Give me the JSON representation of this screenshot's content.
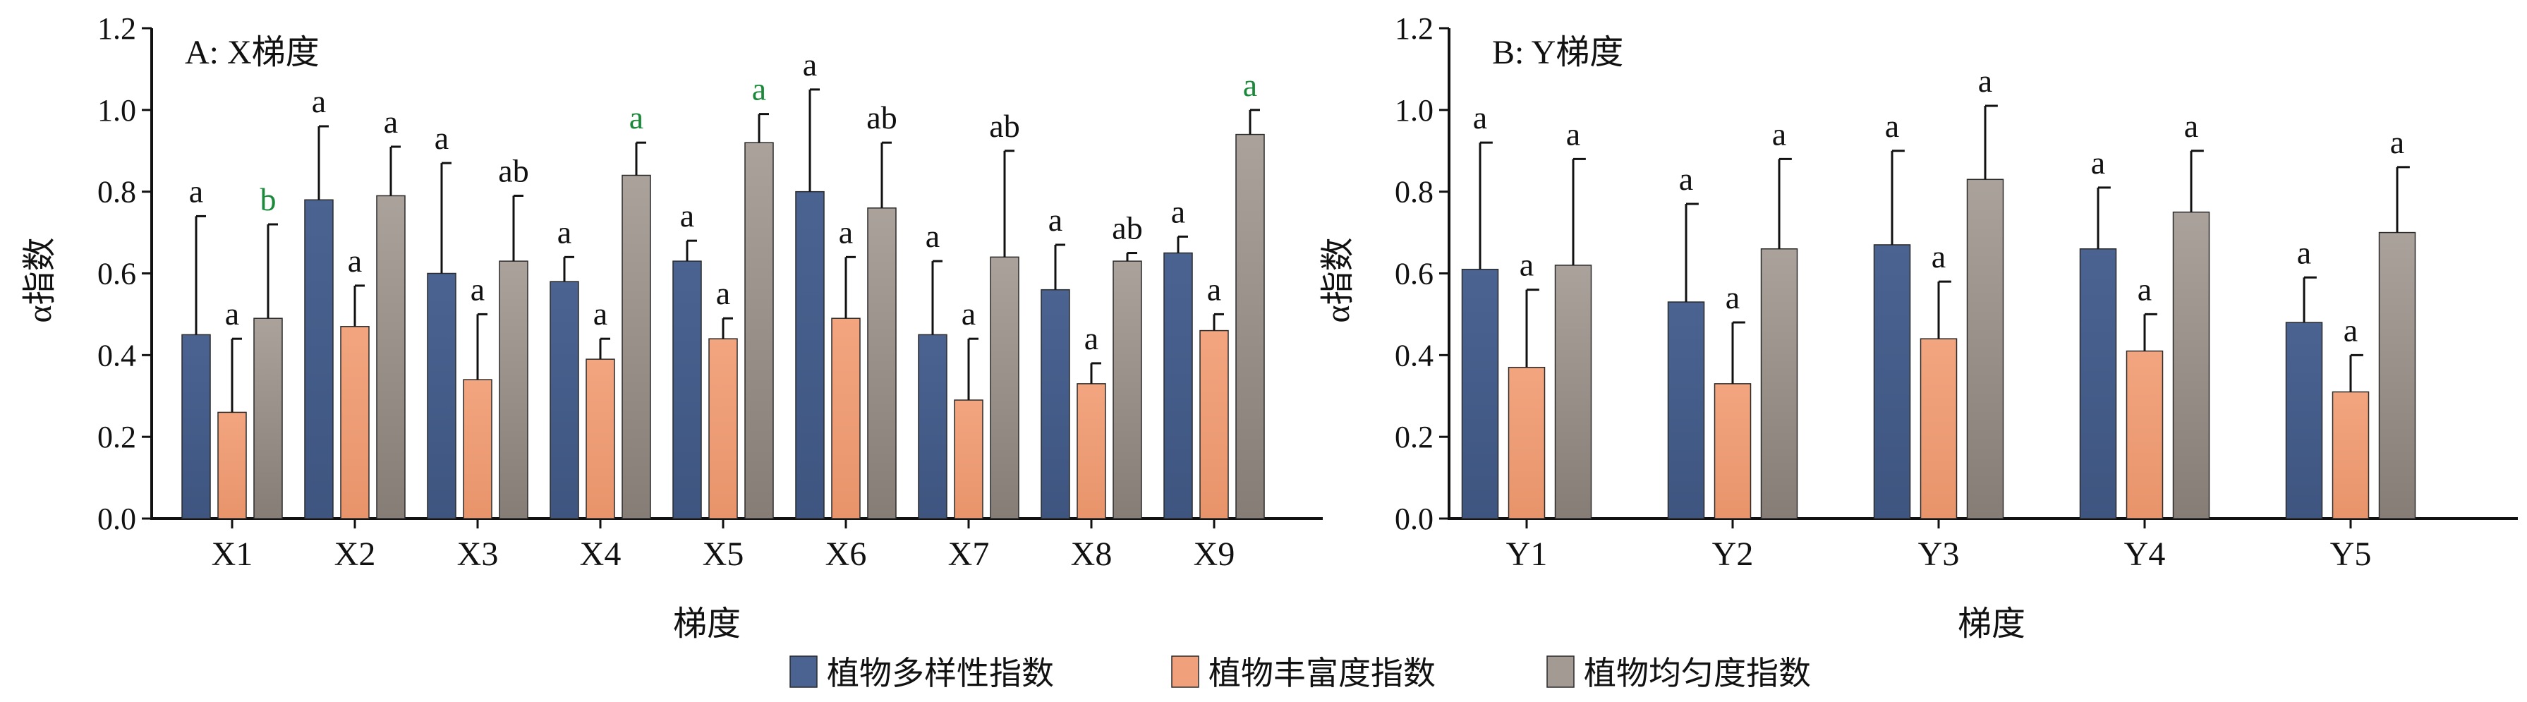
{
  "chart_data": [
    {
      "type": "bar",
      "title": "A: X梯度",
      "xlabel": "梯度",
      "ylabel": "α指数",
      "ylim": [
        0,
        1.2
      ],
      "yticks": [
        "0.0",
        "0.2",
        "0.4",
        "0.6",
        "0.8",
        "1.0",
        "1.2"
      ],
      "categories": [
        "X1",
        "X2",
        "X3",
        "X4",
        "X5",
        "X6",
        "X7",
        "X8",
        "X9"
      ],
      "series": [
        {
          "name": "植物多样性指数",
          "values": [
            0.45,
            0.78,
            0.6,
            0.58,
            0.63,
            0.8,
            0.45,
            0.56,
            0.65
          ],
          "errors": [
            0.29,
            0.18,
            0.27,
            0.06,
            0.05,
            0.25,
            0.18,
            0.11,
            0.04
          ],
          "letters": [
            "a",
            "a",
            "a",
            "a",
            "a",
            "a",
            "a",
            "a",
            "a"
          ]
        },
        {
          "name": "植物丰富度指数",
          "values": [
            0.26,
            0.47,
            0.34,
            0.39,
            0.44,
            0.49,
            0.29,
            0.33,
            0.46
          ],
          "errors": [
            0.18,
            0.1,
            0.16,
            0.05,
            0.05,
            0.15,
            0.15,
            0.05,
            0.04
          ],
          "letters": [
            "a",
            "a",
            "a",
            "a",
            "a",
            "a",
            "a",
            "a",
            "a"
          ]
        },
        {
          "name": "植物均匀度指数",
          "values": [
            0.49,
            0.79,
            0.63,
            0.84,
            0.92,
            0.76,
            0.64,
            0.63,
            0.94
          ],
          "errors": [
            0.23,
            0.12,
            0.16,
            0.08,
            0.07,
            0.16,
            0.26,
            0.02,
            0.06
          ],
          "letters": [
            "b",
            "a",
            "ab",
            "a",
            "a",
            "ab",
            "ab",
            "ab",
            "a"
          ]
        }
      ],
      "highlight_letters": [
        {
          "series": 2,
          "index": 0
        },
        {
          "series": 2,
          "index": 3
        },
        {
          "series": 2,
          "index": 4
        },
        {
          "series": 2,
          "index": 8
        }
      ]
    },
    {
      "type": "bar",
      "title": "B: Y梯度",
      "xlabel": "梯度",
      "ylabel": "α指数",
      "ylim": [
        0,
        1.2
      ],
      "yticks": [
        "0.0",
        "0.2",
        "0.4",
        "0.6",
        "0.8",
        "1.0",
        "1.2"
      ],
      "categories": [
        "Y1",
        "Y2",
        "Y3",
        "Y4",
        "Y5"
      ],
      "series": [
        {
          "name": "植物多样性指数",
          "values": [
            0.61,
            0.53,
            0.67,
            0.66,
            0.48
          ],
          "errors": [
            0.31,
            0.24,
            0.23,
            0.15,
            0.11
          ],
          "letters": [
            "a",
            "a",
            "a",
            "a",
            "a"
          ]
        },
        {
          "name": "植物丰富度指数",
          "values": [
            0.37,
            0.33,
            0.44,
            0.41,
            0.31
          ],
          "errors": [
            0.19,
            0.15,
            0.14,
            0.09,
            0.09
          ],
          "letters": [
            "a",
            "a",
            "a",
            "a",
            "a"
          ]
        },
        {
          "name": "植物均匀度指数",
          "values": [
            0.62,
            0.66,
            0.83,
            0.75,
            0.7
          ],
          "errors": [
            0.26,
            0.22,
            0.18,
            0.15,
            0.16
          ],
          "letters": [
            "a",
            "a",
            "a",
            "a",
            "a"
          ]
        }
      ],
      "highlight_letters": []
    }
  ],
  "legend": [
    {
      "label": "植物多样性指数",
      "color": "#4a6391"
    },
    {
      "label": "植物丰富度指数",
      "color": "#f0a07a"
    },
    {
      "label": "植物均匀度指数",
      "color": "#a39a93"
    }
  ],
  "colors": {
    "series": [
      "#4a6391",
      "#f0a07a",
      "#a39a93"
    ],
    "highlight_letter": "#1a8a3a",
    "axis": "#111111"
  }
}
